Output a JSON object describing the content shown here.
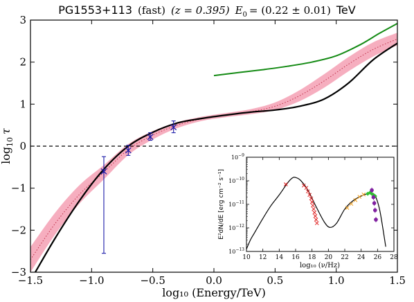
{
  "chart_data": [
    {
      "type": "line",
      "title_parts": {
        "source": "PG1553+113",
        "mode": "(fast)",
        "redshift": "(z = 0.395)",
        "energy_label": "E",
        "energy_sub": "0",
        "energy_value": "= (0.22 ± 0.01)",
        "energy_unit": "TeV"
      },
      "xlabel": "log₁₀ (Energy/TeV)",
      "ylabel_main": "log",
      "ylabel_sub": "10",
      "ylabel_symbol": "τ",
      "xlim": [
        -1.5,
        1.5
      ],
      "ylim": [
        -3,
        3
      ],
      "xticks": [
        -1.5,
        -1.0,
        -0.5,
        0.0,
        0.5,
        1.0,
        1.5
      ],
      "xtick_labels": [
        "−1.5",
        "−1.0",
        "−0.5",
        "0.0",
        "0.5",
        "1.0",
        "1.5"
      ],
      "yticks": [
        -3,
        -2,
        -1,
        0,
        1,
        2,
        3
      ],
      "ytick_labels": [
        "−3",
        "−2",
        "−1",
        "0",
        "1",
        "2",
        "3"
      ],
      "reference_line_y": 0,
      "colors": {
        "model_black": "#000000",
        "model_green": "#138a13",
        "band": "#f4a0b4",
        "data": "#1a1aa8",
        "reference": "#000000"
      },
      "series": [
        {
          "style": "solid-black",
          "x": [
            -1.5,
            -1.3,
            -1.1,
            -0.9,
            -0.7,
            -0.5,
            -0.3,
            -0.1,
            0.1,
            0.3,
            0.5,
            0.7,
            0.9,
            1.1,
            1.3,
            1.5
          ],
          "y": [
            -3.2,
            -2.2,
            -1.3,
            -0.55,
            0.0,
            0.33,
            0.55,
            0.66,
            0.74,
            0.81,
            0.86,
            0.95,
            1.12,
            1.5,
            2.05,
            2.45
          ]
        },
        {
          "style": "solid-green",
          "x": [
            0.0,
            0.2,
            0.4,
            0.6,
            0.8,
            1.0,
            1.2,
            1.35,
            1.5
          ],
          "y": [
            1.68,
            1.75,
            1.82,
            1.9,
            2.0,
            2.15,
            2.42,
            2.68,
            2.92
          ]
        },
        {
          "style": "dotted-band-center",
          "x": [
            -1.5,
            -1.3,
            -1.1,
            -0.9,
            -0.7,
            -0.5,
            -0.3,
            -0.1,
            0.1,
            0.3,
            0.5,
            0.7,
            0.9,
            1.1,
            1.3,
            1.5
          ],
          "y": [
            -2.7,
            -1.85,
            -1.15,
            -0.62,
            -0.08,
            0.26,
            0.5,
            0.65,
            0.74,
            0.82,
            0.95,
            1.2,
            1.55,
            1.95,
            2.3,
            2.55
          ],
          "band_halfwidth": [
            0.3,
            0.26,
            0.22,
            0.17,
            0.13,
            0.1,
            0.07,
            0.05,
            0.05,
            0.06,
            0.09,
            0.13,
            0.16,
            0.17,
            0.17,
            0.15
          ]
        }
      ],
      "data_points": [
        {
          "x": -0.9,
          "y": -0.6,
          "yerr_low": 1.95,
          "yerr_high": 0.35
        },
        {
          "x": -0.7,
          "y": -0.1,
          "yerr_low": 0.12,
          "yerr_high": 0.12
        },
        {
          "x": -0.52,
          "y": 0.22,
          "yerr_low": 0.08,
          "yerr_high": 0.1
        },
        {
          "x": -0.33,
          "y": 0.45,
          "yerr_low": 0.13,
          "yerr_high": 0.15
        }
      ]
    },
    {
      "type": "scatter",
      "xlabel": "log₁₀ (ν/Hz)",
      "ylabel": "E²dN/dE [erg cm⁻² s⁻¹]",
      "xlim": [
        10,
        28
      ],
      "ylim_log10": [
        -13,
        -9
      ],
      "xticks": [
        10,
        12,
        14,
        16,
        18,
        20,
        22,
        24,
        26,
        28
      ],
      "xtick_labels": [
        "10",
        "12",
        "14",
        "16",
        "18",
        "20",
        "22",
        "24",
        "26",
        "28"
      ],
      "ytick_exponents": [
        -13,
        -12,
        -11,
        -10,
        -9
      ],
      "ytick_base": "10",
      "model_curve_log10": {
        "x": [
          10.0,
          10.5,
          11,
          12,
          13,
          14,
          15,
          15.6,
          16,
          16.6,
          17.5,
          18.5,
          19.5,
          20.2,
          21,
          22,
          23,
          24,
          24.8,
          25.4,
          25.8,
          26.3,
          27
        ],
        "y": [
          -12.9,
          -12.5,
          -12.2,
          -11.6,
          -11.05,
          -10.6,
          -10.1,
          -9.88,
          -9.86,
          -9.98,
          -10.4,
          -11.1,
          -11.75,
          -11.98,
          -11.8,
          -11.2,
          -10.85,
          -10.65,
          -10.55,
          -10.56,
          -10.7,
          -11.3,
          -12.8
        ]
      },
      "points": [
        {
          "group": "optical",
          "color": "#e02020",
          "marker": "x",
          "x": [
            14.8,
            17.0,
            17.3,
            17.5,
            17.7,
            17.9,
            18.0,
            18.1,
            18.2,
            18.3,
            18.4,
            18.5,
            18.6
          ],
          "y": [
            -10.15,
            -10.2,
            -10.3,
            -10.45,
            -10.6,
            -10.75,
            -10.9,
            -11.05,
            -11.2,
            -11.35,
            -11.5,
            -11.65,
            -11.8
          ]
        },
        {
          "group": "gamma-orange",
          "color": "#f0a020",
          "marker": "x",
          "x": [
            22.3,
            22.8,
            23.3,
            23.8,
            24.3
          ],
          "y": [
            -11.15,
            -10.98,
            -10.82,
            -10.68,
            -10.58
          ]
        },
        {
          "group": "gamma-green",
          "color": "#30c030",
          "marker": "diamond",
          "x": [
            24.8,
            25.1,
            25.3,
            25.5,
            25.7
          ],
          "y": [
            -10.55,
            -10.5,
            -10.55,
            -10.6,
            -10.65
          ]
        },
        {
          "group": "tev-purple",
          "color": "#8020a0",
          "marker": "circle",
          "x": [
            25.3,
            25.5,
            25.6,
            25.7,
            25.8
          ],
          "y": [
            -10.4,
            -10.7,
            -10.95,
            -11.25,
            -11.65
          ]
        }
      ]
    }
  ]
}
